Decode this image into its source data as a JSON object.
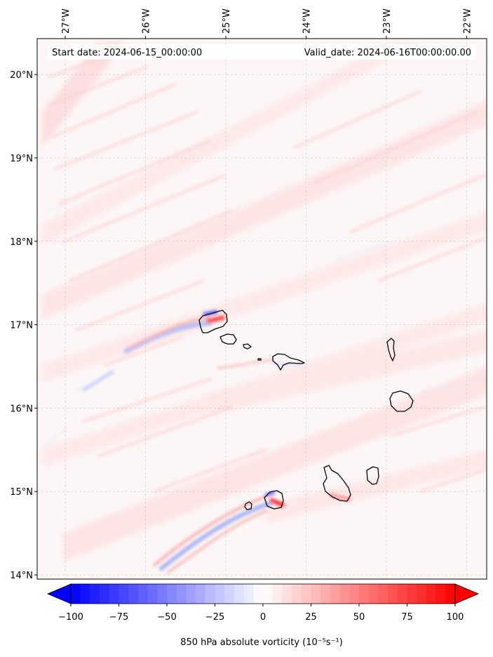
{
  "header": {
    "start_date": "Start date: 2024-06-15_00:00:00",
    "valid_date": "Valid_date: 2024-06-16T00:00:00.00"
  },
  "map": {
    "lon_ticks": [
      "27°W",
      "26°W",
      "25°W",
      "24°W",
      "23°W",
      "22°W"
    ],
    "lat_ticks": [
      "20°N",
      "19°N",
      "18°N",
      "17°N",
      "16°N",
      "15°N",
      "14°N"
    ],
    "lon_values": [
      -27,
      -26,
      -25,
      -24,
      -23,
      -22
    ],
    "lat_values": [
      20,
      19,
      18,
      17,
      16,
      15,
      14
    ],
    "extent": {
      "lon_min": -27.35,
      "lon_max": -21.75,
      "lat_min": 13.95,
      "lat_max": 20.43
    },
    "islands": [
      "Santo Antão",
      "São Vicente",
      "Santa Luzia",
      "São Nicolau",
      "Sal",
      "Boa Vista",
      "Maio",
      "Santiago",
      "Fogo",
      "Brava"
    ]
  },
  "colorbar": {
    "min": -100,
    "max": 100,
    "ticks": [
      "−100",
      "−75",
      "−50",
      "−25",
      "0",
      "25",
      "50",
      "75",
      "100"
    ],
    "tick_values": [
      -100,
      -75,
      -50,
      -25,
      0,
      25,
      50,
      75,
      100
    ],
    "label": "850 hPa absolute vorticity (10⁻⁵s⁻¹)",
    "colors": {
      "low": "#0000ff",
      "mid": "#ffffff",
      "high": "#ff0000"
    }
  }
}
